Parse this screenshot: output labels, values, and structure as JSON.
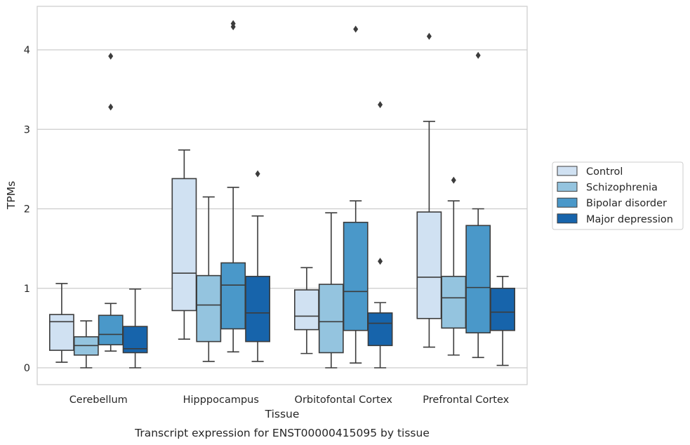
{
  "caption": "Transcript expression for ENST00000415095 by tissue",
  "chart_data": {
    "type": "box",
    "xlabel": "Tissue",
    "ylabel": "TPMs",
    "ylim": [
      -0.2,
      4.55
    ],
    "yticks": [
      0,
      1,
      2,
      3,
      4
    ],
    "grid": "horizontal",
    "legend_position": "right",
    "categories": [
      "Cerebellum",
      "Hipppocampus",
      "Orbitofontal Cortex",
      "Prefrontal Cortex"
    ],
    "series": [
      {
        "name": "Control",
        "color": "#d0e1f2",
        "boxes": [
          {
            "whislo": 0.07,
            "q1": 0.22,
            "med": 0.58,
            "q3": 0.67,
            "whishi": 1.06,
            "fliers": []
          },
          {
            "whislo": 0.36,
            "q1": 0.72,
            "med": 1.19,
            "q3": 2.38,
            "whishi": 2.74,
            "fliers": []
          },
          {
            "whislo": 0.18,
            "q1": 0.48,
            "med": 0.65,
            "q3": 0.98,
            "whishi": 1.26,
            "fliers": []
          },
          {
            "whislo": 0.26,
            "q1": 0.62,
            "med": 1.14,
            "q3": 1.96,
            "whishi": 3.1,
            "fliers": [
              4.17
            ]
          }
        ]
      },
      {
        "name": "Schizophrenia",
        "color": "#94c4df",
        "boxes": [
          {
            "whislo": 0.0,
            "q1": 0.16,
            "med": 0.28,
            "q3": 0.39,
            "whishi": 0.59,
            "fliers": []
          },
          {
            "whislo": 0.08,
            "q1": 0.33,
            "med": 0.79,
            "q3": 1.16,
            "whishi": 2.15,
            "fliers": []
          },
          {
            "whislo": 0.0,
            "q1": 0.19,
            "med": 0.58,
            "q3": 1.05,
            "whishi": 1.95,
            "fliers": []
          },
          {
            "whislo": 0.16,
            "q1": 0.5,
            "med": 0.88,
            "q3": 1.15,
            "whishi": 2.1,
            "fliers": [
              2.36
            ]
          }
        ]
      },
      {
        "name": "Bipolar disorder",
        "color": "#4a98c9",
        "boxes": [
          {
            "whislo": 0.21,
            "q1": 0.29,
            "med": 0.42,
            "q3": 0.66,
            "whishi": 0.81,
            "fliers": [
              3.28,
              3.92
            ]
          },
          {
            "whislo": 0.2,
            "q1": 0.49,
            "med": 1.04,
            "q3": 1.32,
            "whishi": 2.27,
            "fliers": [
              4.29,
              4.33
            ]
          },
          {
            "whislo": 0.06,
            "q1": 0.47,
            "med": 0.96,
            "q3": 1.83,
            "whishi": 2.1,
            "fliers": [
              4.26
            ]
          },
          {
            "whislo": 0.13,
            "q1": 0.44,
            "med": 1.01,
            "q3": 1.79,
            "whishi": 2.0,
            "fliers": [
              3.93
            ]
          }
        ]
      },
      {
        "name": "Major depression",
        "color": "#1764ab",
        "boxes": [
          {
            "whislo": 0.0,
            "q1": 0.19,
            "med": 0.24,
            "q3": 0.52,
            "whishi": 0.99,
            "fliers": []
          },
          {
            "whislo": 0.08,
            "q1": 0.33,
            "med": 0.69,
            "q3": 1.15,
            "whishi": 1.91,
            "fliers": [
              2.44
            ]
          },
          {
            "whislo": 0.0,
            "q1": 0.28,
            "med": 0.56,
            "q3": 0.69,
            "whishi": 0.82,
            "fliers": [
              1.34,
              3.31
            ]
          },
          {
            "whislo": 0.03,
            "q1": 0.47,
            "med": 0.7,
            "q3": 1.0,
            "whishi": 1.15,
            "fliers": []
          }
        ]
      }
    ]
  }
}
